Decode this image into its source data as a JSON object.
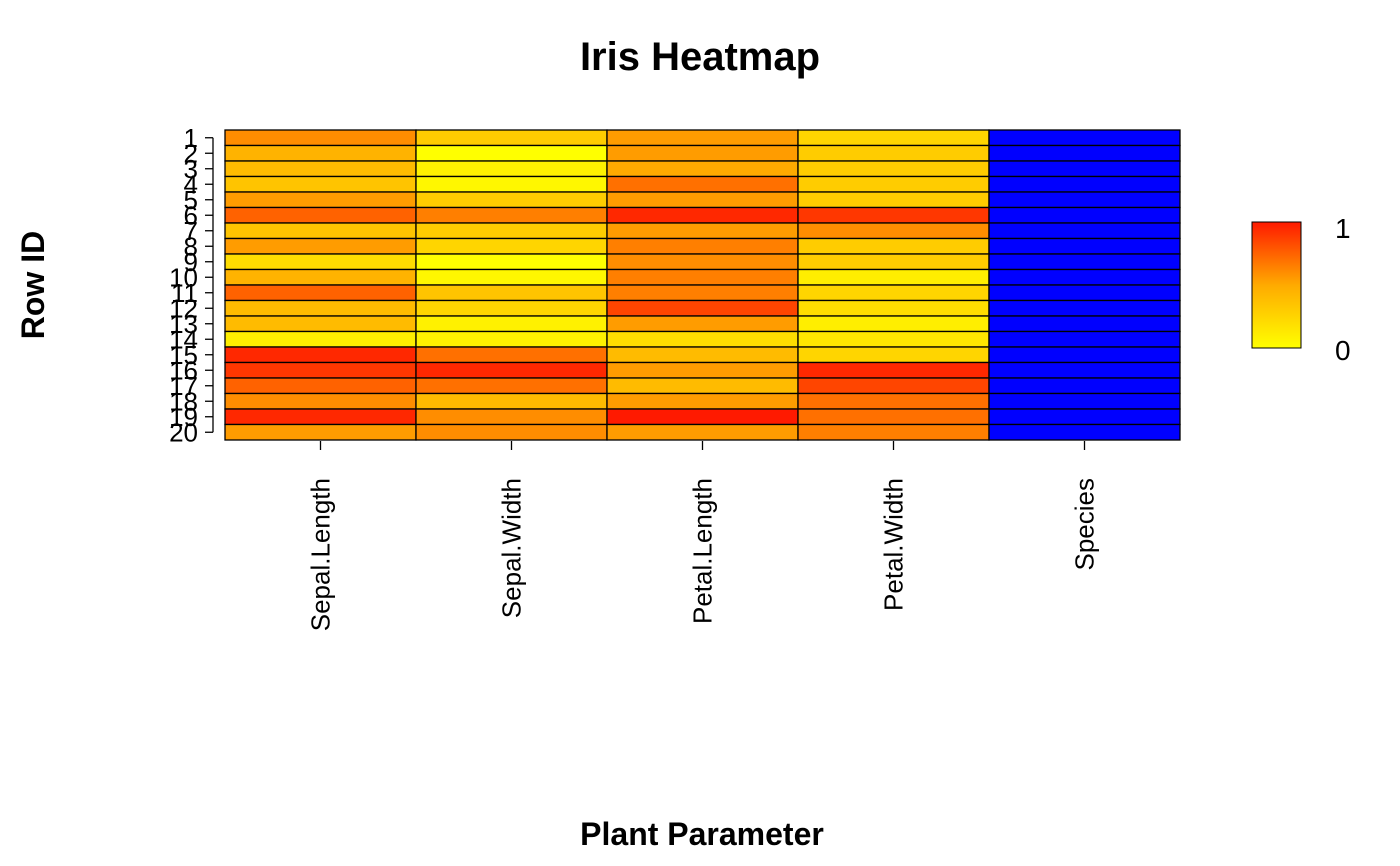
{
  "chart_data": {
    "type": "heatmap",
    "title": "Iris Heatmap",
    "xlabel": "Plant Parameter",
    "ylabel": "Row ID",
    "columns": [
      "Sepal.Length",
      "Sepal.Width",
      "Petal.Length",
      "Petal.Width",
      "Species"
    ],
    "rows": [
      "1",
      "2",
      "3",
      "4",
      "5",
      "6",
      "7",
      "8",
      "9",
      "10",
      "11",
      "12",
      "13",
      "14",
      "15",
      "16",
      "17",
      "18",
      "19",
      "20"
    ],
    "values": [
      [
        0.6,
        0.3,
        0.55,
        0.25,
        0.0
      ],
      [
        0.45,
        0.0,
        0.55,
        0.3,
        0.0
      ],
      [
        0.4,
        0.08,
        0.5,
        0.3,
        0.0
      ],
      [
        0.35,
        0.05,
        0.7,
        0.3,
        0.0
      ],
      [
        0.55,
        0.3,
        0.55,
        0.3,
        0.0
      ],
      [
        0.75,
        0.65,
        0.95,
        0.9,
        0.0
      ],
      [
        0.35,
        0.3,
        0.55,
        0.6,
        0.0
      ],
      [
        0.55,
        0.25,
        0.65,
        0.3,
        0.0
      ],
      [
        0.2,
        0.0,
        0.6,
        0.3,
        0.0
      ],
      [
        0.45,
        0.05,
        0.65,
        0.1,
        0.0
      ],
      [
        0.75,
        0.35,
        0.65,
        0.25,
        0.0
      ],
      [
        0.4,
        0.25,
        0.85,
        0.2,
        0.0
      ],
      [
        0.4,
        0.08,
        0.55,
        0.1,
        0.0
      ],
      [
        0.1,
        0.08,
        0.2,
        0.15,
        0.0
      ],
      [
        0.95,
        0.7,
        0.4,
        0.25,
        0.0
      ],
      [
        0.9,
        0.95,
        0.55,
        0.95,
        0.0
      ],
      [
        0.75,
        0.7,
        0.4,
        0.85,
        0.0
      ],
      [
        0.6,
        0.4,
        0.55,
        0.7,
        0.0
      ],
      [
        0.95,
        0.6,
        1.0,
        0.7,
        0.0
      ],
      [
        0.55,
        0.6,
        0.55,
        0.65,
        0.0
      ]
    ],
    "species_color": "#0000ff",
    "color_scale": {
      "low": "#ffff00",
      "mid": "#ffaa00",
      "high": "#ff1a00"
    },
    "legend": {
      "min_label": "0",
      "max_label": "1",
      "position": "right"
    }
  }
}
